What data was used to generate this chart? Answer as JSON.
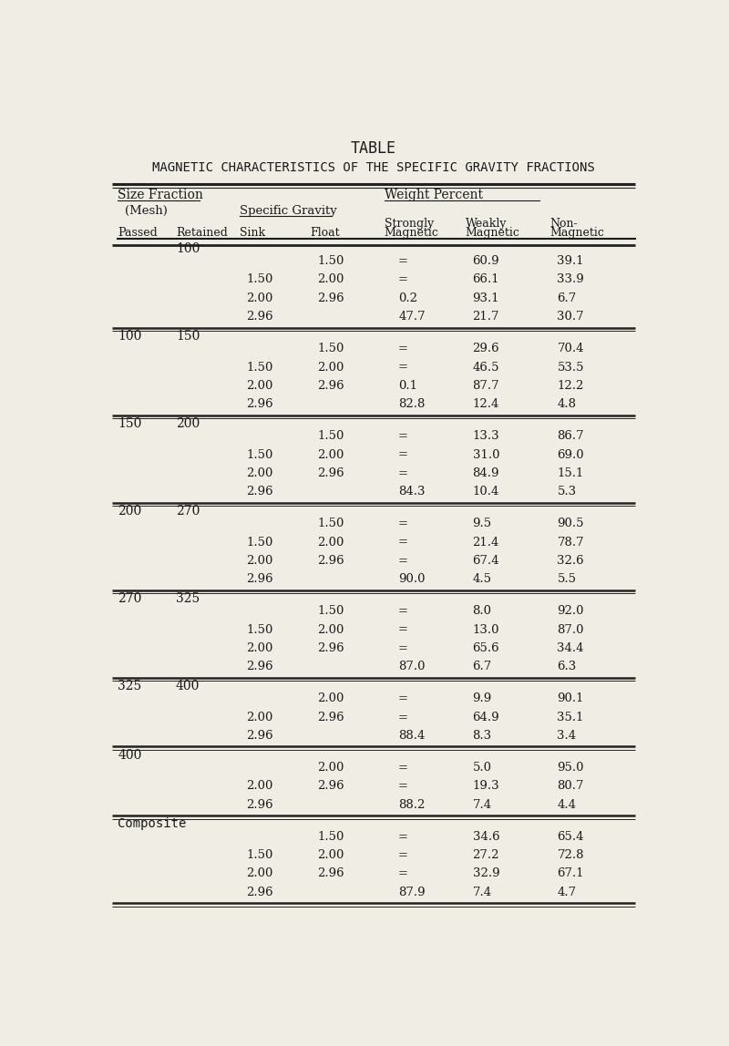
{
  "title1": "TABLE",
  "title2": "MAGNETIC CHARACTERISTICS OF THE SPECIFIC GRAVITY FRACTIONS",
  "bg_color": "#f0ede4",
  "text_color": "#1a1a1a",
  "sections": [
    {
      "passed": "",
      "retained": "100",
      "rows": [
        {
          "sink": "",
          "float": "1.50",
          "strongly": "=",
          "weakly": "60.9",
          "non": "39.1"
        },
        {
          "sink": "1.50",
          "float": "2.00",
          "strongly": "=",
          "weakly": "66.1",
          "non": "33.9"
        },
        {
          "sink": "2.00",
          "float": "2.96",
          "strongly": "0.2",
          "weakly": "93.1",
          "non": "6.7"
        },
        {
          "sink": "2.96",
          "float": "",
          "strongly": "47.7",
          "weakly": "21.7",
          "non": "30.7"
        }
      ]
    },
    {
      "passed": "100",
      "retained": "150",
      "rows": [
        {
          "sink": "",
          "float": "1.50",
          "strongly": "=",
          "weakly": "29.6",
          "non": "70.4"
        },
        {
          "sink": "1.50",
          "float": "2.00",
          "strongly": "=",
          "weakly": "46.5",
          "non": "53.5"
        },
        {
          "sink": "2.00",
          "float": "2.96",
          "strongly": "0.1",
          "weakly": "87.7",
          "non": "12.2"
        },
        {
          "sink": "2.96",
          "float": "",
          "strongly": "82.8",
          "weakly": "12.4",
          "non": "4.8"
        }
      ]
    },
    {
      "passed": "150",
      "retained": "200",
      "rows": [
        {
          "sink": "",
          "float": "1.50",
          "strongly": "=",
          "weakly": "13.3",
          "non": "86.7"
        },
        {
          "sink": "1.50",
          "float": "2.00",
          "strongly": "=",
          "weakly": "31.0",
          "non": "69.0"
        },
        {
          "sink": "2.00",
          "float": "2.96",
          "strongly": "=",
          "weakly": "84.9",
          "non": "15.1"
        },
        {
          "sink": "2.96",
          "float": "",
          "strongly": "84.3",
          "weakly": "10.4",
          "non": "5.3"
        }
      ]
    },
    {
      "passed": "200",
      "retained": "270",
      "rows": [
        {
          "sink": "",
          "float": "1.50",
          "strongly": "=",
          "weakly": "9.5",
          "non": "90.5"
        },
        {
          "sink": "1.50",
          "float": "2.00",
          "strongly": "=",
          "weakly": "21.4",
          "non": "78.7"
        },
        {
          "sink": "2.00",
          "float": "2.96",
          "strongly": "=",
          "weakly": "67.4",
          "non": "32.6"
        },
        {
          "sink": "2.96",
          "float": "",
          "strongly": "90.0",
          "weakly": "4.5",
          "non": "5.5"
        }
      ]
    },
    {
      "passed": "270",
      "retained": "325",
      "rows": [
        {
          "sink": "",
          "float": "1.50",
          "strongly": "=",
          "weakly": "8.0",
          "non": "92.0"
        },
        {
          "sink": "1.50",
          "float": "2.00",
          "strongly": "=",
          "weakly": "13.0",
          "non": "87.0"
        },
        {
          "sink": "2.00",
          "float": "2.96",
          "strongly": "=",
          "weakly": "65.6",
          "non": "34.4"
        },
        {
          "sink": "2.96",
          "float": "",
          "strongly": "87.0",
          "weakly": "6.7",
          "non": "6.3"
        }
      ]
    },
    {
      "passed": "325",
      "retained": "400",
      "rows": [
        {
          "sink": "",
          "float": "2.00",
          "strongly": "=",
          "weakly": "9.9",
          "non": "90.1"
        },
        {
          "sink": "2.00",
          "float": "2.96",
          "strongly": "=",
          "weakly": "64.9",
          "non": "35.1"
        },
        {
          "sink": "2.96",
          "float": "",
          "strongly": "88.4",
          "weakly": "8.3",
          "non": "3.4"
        }
      ]
    },
    {
      "passed": "400",
      "retained": "",
      "rows": [
        {
          "sink": "",
          "float": "2.00",
          "strongly": "=",
          "weakly": "5.0",
          "non": "95.0"
        },
        {
          "sink": "2.00",
          "float": "2.96",
          "strongly": "=",
          "weakly": "19.3",
          "non": "80.7"
        },
        {
          "sink": "2.96",
          "float": "",
          "strongly": "88.2",
          "weakly": "7.4",
          "non": "4.4"
        }
      ]
    },
    {
      "passed": "Composite",
      "retained": "",
      "rows": [
        {
          "sink": "",
          "float": "1.50",
          "strongly": "=",
          "weakly": "34.6",
          "non": "65.4"
        },
        {
          "sink": "1.50",
          "float": "2.00",
          "strongly": "=",
          "weakly": "27.2",
          "non": "72.8"
        },
        {
          "sink": "2.00",
          "float": "2.96",
          "strongly": "=",
          "weakly": "32.9",
          "non": "67.1"
        },
        {
          "sink": "2.96",
          "float": "",
          "strongly": "87.9",
          "weakly": "7.4",
          "non": "4.7"
        }
      ]
    }
  ]
}
